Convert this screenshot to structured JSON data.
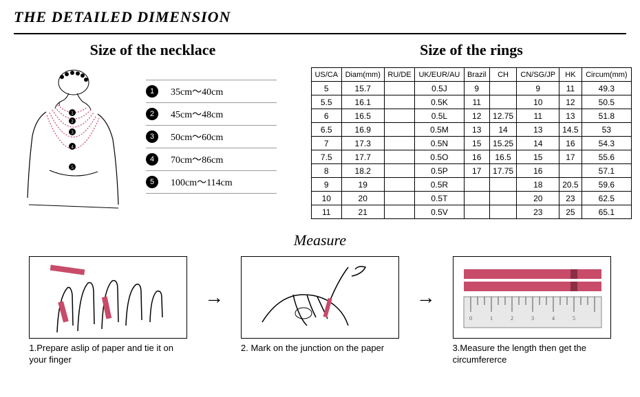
{
  "header": {
    "title": "THE DETAILED DIMENSION"
  },
  "necklace": {
    "title": "Size of the necklace",
    "sizes": [
      {
        "num": "1",
        "range": "35cm～40cm"
      },
      {
        "num": "2",
        "range": "45cm～48cm"
      },
      {
        "num": "3",
        "range": "50cm～60cm"
      },
      {
        "num": "4",
        "range": "70cm～86cm"
      },
      {
        "num": "5",
        "range": "100cm～114cm"
      }
    ]
  },
  "rings": {
    "title": "Size of the rings",
    "columns": [
      "US/CA",
      "Diam(mm)",
      "RU/DE",
      "UK/EUR/AU",
      "Brazil",
      "CH",
      "CN/SG/JP",
      "HK",
      "Circum(mm)"
    ],
    "rows": [
      [
        "5",
        "15.7",
        "",
        "0.5J",
        "9",
        "",
        "9",
        "11",
        "49.3"
      ],
      [
        "5.5",
        "16.1",
        "",
        "0.5K",
        "11",
        "",
        "10",
        "12",
        "50.5"
      ],
      [
        "6",
        "16.5",
        "",
        "0.5L",
        "12",
        "12.75",
        "11",
        "13",
        "51.8"
      ],
      [
        "6.5",
        "16.9",
        "",
        "0.5M",
        "13",
        "14",
        "13",
        "14.5",
        "53"
      ],
      [
        "7",
        "17.3",
        "",
        "0.5N",
        "15",
        "15.25",
        "14",
        "16",
        "54.3"
      ],
      [
        "7.5",
        "17.7",
        "",
        "0.5O",
        "16",
        "16.5",
        "15",
        "17",
        "55.6"
      ],
      [
        "8",
        "18.2",
        "",
        "0.5P",
        "17",
        "17.75",
        "16",
        "",
        "57.1"
      ],
      [
        "9",
        "19",
        "",
        "0.5R",
        "",
        "",
        "18",
        "20.5",
        "59.6"
      ],
      [
        "10",
        "20",
        "",
        "0.5T",
        "",
        "",
        "20",
        "23",
        "62.5"
      ],
      [
        "11",
        "21",
        "",
        "0.5V",
        "",
        "",
        "23",
        "25",
        "65.1"
      ]
    ]
  },
  "measure": {
    "title": "Measure",
    "steps": [
      {
        "caption": "1.Prepare aslip of paper and tie it on your finger"
      },
      {
        "caption": "2. Mark on the junction on the paper"
      },
      {
        "caption": "3.Measure the length then get the circumfererce"
      }
    ]
  },
  "colors": {
    "accent": "#c84b6a",
    "ruler": "#d6d6d6"
  }
}
